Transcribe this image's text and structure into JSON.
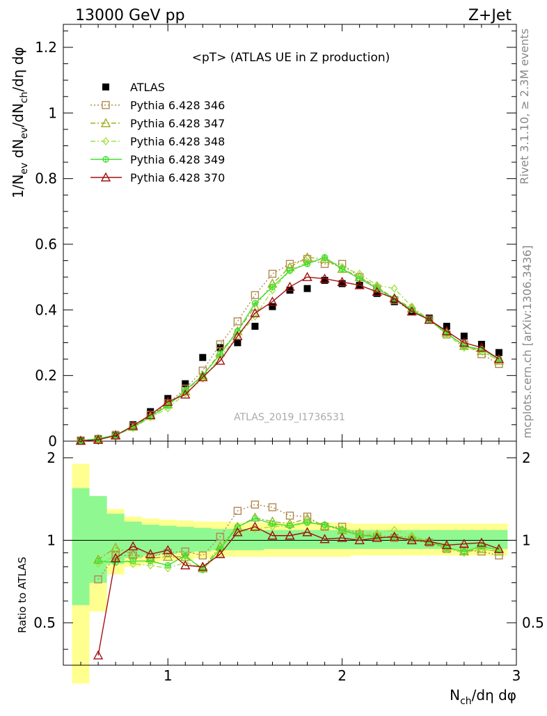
{
  "header": {
    "left": "13000 GeV pp",
    "right": "Z+Jet"
  },
  "side_labels": {
    "rivet": "Rivet 3.1.10, ≥ 2.3M events",
    "mcplots": "mcplots.cern.ch [arXiv:1306.3436]"
  },
  "chart_data": [
    {
      "type": "line",
      "title": "<pT> (ATLAS UE in Z production)",
      "watermark": "ATLAS_2019_I1736531",
      "ylabel": {
        "main": "1/N",
        "sub1": "ev",
        "mid1": " dN",
        "sub2": "ev",
        "mid2": "/dN",
        "sub3": "ch",
        "tail": "/dη dφ"
      },
      "xlabel": {
        "main": "N",
        "sub": "ch",
        "tail": "/dη dφ"
      },
      "xlim": [
        0.4,
        3.0
      ],
      "ylim": [
        0,
        1.27
      ],
      "yticks": [
        0,
        0.2,
        0.4,
        0.6,
        0.8,
        1,
        1.2
      ],
      "ytick_labels": [
        "0",
        "0.2",
        "0.4",
        "0.6",
        "0.8",
        "1",
        "1.2"
      ],
      "x": [
        0.5,
        0.6,
        0.7,
        0.8,
        0.9,
        1.0,
        1.1,
        1.2,
        1.3,
        1.4,
        1.5,
        1.6,
        1.7,
        1.8,
        1.9,
        2.0,
        2.1,
        2.2,
        2.3,
        2.4,
        2.5,
        2.6,
        2.7,
        2.8,
        2.9
      ],
      "legend_position": "top-left",
      "series": [
        {
          "name": "ATLAS",
          "color": "#000000",
          "marker": "square-filled",
          "line": "none",
          "values": [
            0.003,
            0.008,
            0.02,
            0.05,
            0.09,
            0.13,
            0.175,
            0.255,
            0.285,
            0.3,
            0.35,
            0.41,
            0.46,
            0.465,
            0.49,
            0.48,
            0.475,
            0.45,
            0.425,
            0.395,
            0.375,
            0.35,
            0.32,
            0.295,
            0.27
          ]
        },
        {
          "name": "Pythia 6.428 346",
          "color": "#b08850",
          "marker": "square-open",
          "line": "dotted",
          "values": [
            0.002,
            0.006,
            0.018,
            0.045,
            0.08,
            0.115,
            0.16,
            0.215,
            0.295,
            0.365,
            0.445,
            0.51,
            0.54,
            0.555,
            0.54,
            0.54,
            0.5,
            0.465,
            0.43,
            0.395,
            0.37,
            0.325,
            0.295,
            0.265,
            0.235
          ]
        },
        {
          "name": "Pythia 6.428 347",
          "color": "#a0b020",
          "marker": "triangle-open",
          "line": "dashdot",
          "values": [
            0.002,
            0.007,
            0.019,
            0.044,
            0.077,
            0.112,
            0.152,
            0.2,
            0.27,
            0.335,
            0.41,
            0.48,
            0.53,
            0.56,
            0.555,
            0.525,
            0.5,
            0.47,
            0.435,
            0.405,
            0.37,
            0.33,
            0.29,
            0.275,
            0.245
          ]
        },
        {
          "name": "Pythia 6.428 348",
          "color": "#a0e040",
          "marker": "diamond-open",
          "line": "dashdot",
          "values": [
            0.002,
            0.007,
            0.018,
            0.04,
            0.073,
            0.1,
            0.145,
            0.19,
            0.255,
            0.32,
            0.38,
            0.46,
            0.52,
            0.545,
            0.555,
            0.53,
            0.51,
            0.475,
            0.465,
            0.41,
            0.37,
            0.325,
            0.285,
            0.275,
            0.245
          ]
        },
        {
          "name": "Pythia 6.428 349",
          "color": "#40e030",
          "marker": "circle-cross",
          "line": "solid",
          "values": [
            0.002,
            0.007,
            0.019,
            0.042,
            0.075,
            0.108,
            0.155,
            0.2,
            0.265,
            0.335,
            0.42,
            0.47,
            0.52,
            0.54,
            0.56,
            0.525,
            0.495,
            0.465,
            0.435,
            0.4,
            0.37,
            0.33,
            0.29,
            0.28,
            0.25
          ]
        },
        {
          "name": "Pythia 6.428 370",
          "color": "#a01010",
          "marker": "triangle-open",
          "line": "solid",
          "values": [
            0.001,
            0.004,
            0.017,
            0.047,
            0.08,
            0.12,
            0.142,
            0.195,
            0.245,
            0.32,
            0.39,
            0.425,
            0.47,
            0.5,
            0.495,
            0.485,
            0.475,
            0.455,
            0.435,
            0.395,
            0.37,
            0.335,
            0.3,
            0.285,
            0.25
          ]
        }
      ]
    },
    {
      "type": "line",
      "ylabel": "Ratio to ATLAS",
      "xlim": [
        0.4,
        3.0
      ],
      "ylim": [
        0.35,
        2.3
      ],
      "log_y": true,
      "xticks": [
        1,
        2,
        3
      ],
      "xtick_labels": [
        "1",
        "2",
        "3"
      ],
      "yticks": [
        0.5,
        1,
        2
      ],
      "ytick_labels": [
        "0.5",
        "1",
        "2"
      ],
      "reference_line": 1,
      "bands": {
        "outer_color": "#ffff90",
        "inner_color": "#90f890",
        "outer": [
          [
            0.5,
            0.3,
            1.9
          ],
          [
            0.6,
            0.55,
            1.45
          ],
          [
            0.7,
            0.75,
            1.3
          ],
          [
            0.8,
            0.8,
            1.22
          ],
          [
            0.9,
            0.82,
            1.2
          ],
          [
            1.0,
            0.84,
            1.19
          ],
          [
            1.1,
            0.85,
            1.18
          ],
          [
            1.2,
            0.86,
            1.17
          ],
          [
            1.3,
            0.87,
            1.17
          ],
          [
            1.4,
            0.87,
            1.16
          ],
          [
            1.5,
            0.87,
            1.16
          ],
          [
            1.6,
            0.87,
            1.16
          ],
          [
            1.7,
            0.87,
            1.16
          ],
          [
            1.8,
            0.87,
            1.16
          ],
          [
            1.9,
            0.87,
            1.16
          ],
          [
            2.0,
            0.87,
            1.16
          ],
          [
            2.1,
            0.88,
            1.15
          ],
          [
            2.2,
            0.88,
            1.15
          ],
          [
            2.3,
            0.88,
            1.15
          ],
          [
            2.4,
            0.88,
            1.15
          ],
          [
            2.5,
            0.88,
            1.15
          ],
          [
            2.6,
            0.88,
            1.15
          ],
          [
            2.7,
            0.88,
            1.15
          ],
          [
            2.8,
            0.88,
            1.15
          ],
          [
            2.9,
            0.88,
            1.15
          ]
        ],
        "inner": [
          [
            0.5,
            0.58,
            1.55
          ],
          [
            0.6,
            0.7,
            1.45
          ],
          [
            0.7,
            0.82,
            1.25
          ],
          [
            0.8,
            0.86,
            1.17
          ],
          [
            0.9,
            0.88,
            1.14
          ],
          [
            1.0,
            0.89,
            1.13
          ],
          [
            1.1,
            0.9,
            1.12
          ],
          [
            1.2,
            0.91,
            1.11
          ],
          [
            1.3,
            0.92,
            1.1
          ],
          [
            1.4,
            0.92,
            1.1
          ],
          [
            1.5,
            0.92,
            1.09
          ],
          [
            1.6,
            0.93,
            1.09
          ],
          [
            1.7,
            0.93,
            1.09
          ],
          [
            1.8,
            0.93,
            1.09
          ],
          [
            1.9,
            0.93,
            1.09
          ],
          [
            2.0,
            0.93,
            1.09
          ],
          [
            2.1,
            0.93,
            1.09
          ],
          [
            2.2,
            0.93,
            1.09
          ],
          [
            2.3,
            0.93,
            1.09
          ],
          [
            2.4,
            0.93,
            1.09
          ],
          [
            2.5,
            0.93,
            1.09
          ],
          [
            2.6,
            0.93,
            1.09
          ],
          [
            2.7,
            0.93,
            1.09
          ],
          [
            2.8,
            0.93,
            1.09
          ],
          [
            2.9,
            0.93,
            1.09
          ]
        ]
      },
      "x": [
        0.6,
        0.7,
        0.8,
        0.9,
        1.0,
        1.1,
        1.2,
        1.3,
        1.4,
        1.5,
        1.6,
        1.7,
        1.8,
        1.9,
        2.0,
        2.1,
        2.2,
        2.3,
        2.4,
        2.5,
        2.6,
        2.7,
        2.8,
        2.9
      ],
      "series": [
        {
          "name": "Pythia 6.428 346",
          "values": [
            0.72,
            0.88,
            0.88,
            0.87,
            0.9,
            0.91,
            0.88,
            1.03,
            1.28,
            1.35,
            1.32,
            1.23,
            1.22,
            1.12,
            1.12,
            1.05,
            1.03,
            1.02,
            1.0,
            0.98,
            0.93,
            0.92,
            0.91,
            0.88
          ]
        },
        {
          "name": "Pythia 6.428 347",
          "values": [
            0.85,
            0.94,
            0.89,
            0.86,
            0.87,
            0.87,
            0.79,
            0.95,
            1.12,
            1.21,
            1.17,
            1.15,
            1.2,
            1.13,
            1.09,
            1.05,
            1.04,
            1.03,
            1.03,
            0.99,
            0.94,
            0.91,
            0.93,
            0.91
          ]
        },
        {
          "name": "Pythia 6.428 348",
          "values": [
            0.82,
            0.88,
            0.82,
            0.81,
            0.79,
            0.83,
            0.79,
            0.89,
            1.07,
            1.1,
            1.12,
            1.13,
            1.17,
            1.13,
            1.1,
            1.07,
            1.06,
            1.09,
            1.04,
            0.99,
            0.93,
            0.9,
            0.93,
            0.91
          ]
        },
        {
          "name": "Pythia 6.428 349",
          "values": [
            0.84,
            0.83,
            0.84,
            0.84,
            0.81,
            0.88,
            0.78,
            0.93,
            1.12,
            1.2,
            1.15,
            1.13,
            1.16,
            1.14,
            1.09,
            1.04,
            1.03,
            1.02,
            1.01,
            0.99,
            0.94,
            0.91,
            0.95,
            0.92
          ]
        },
        {
          "name": "Pythia 6.428 370",
          "values": [
            0.38,
            0.86,
            0.95,
            0.89,
            0.92,
            0.81,
            0.8,
            0.89,
            1.07,
            1.12,
            1.04,
            1.04,
            1.07,
            1.01,
            1.02,
            1.0,
            1.02,
            1.03,
            1.0,
            0.99,
            0.96,
            0.97,
            0.98,
            0.93
          ]
        }
      ]
    }
  ]
}
